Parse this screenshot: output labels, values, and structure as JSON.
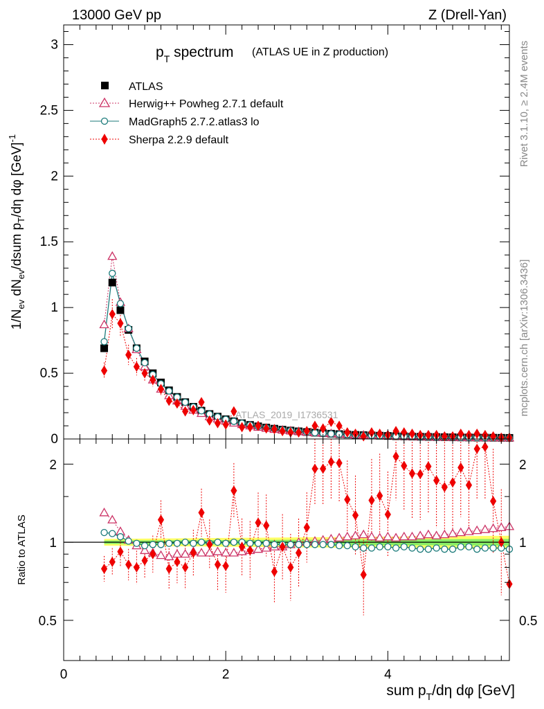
{
  "header": {
    "left": "13000 GeV pp",
    "right": "Z (Drell-Yan)"
  },
  "side_labels": {
    "rivet": "Rivet 3.1.10, ≥ 2.4M events",
    "mcplots": "mcplots.cern.ch [arXiv:1306.3436]"
  },
  "watermark": "ATLAS_2019_I1736531",
  "colors": {
    "atlas": "#000000",
    "herwig": "#cc3366",
    "madgraph": "#1a7a7a",
    "sherpa": "#ee0000",
    "band_outer": "#ffff66",
    "band_inner": "#88ee66"
  },
  "chart_data": [
    {
      "type": "scatter",
      "panel": "main",
      "title": "p_T spectrum",
      "title_main": "p",
      "title_sub": "T",
      "title_word": " spectrum",
      "subtitle": "(ATLAS UE in Z production)",
      "xlabel": "sum p_T/dη dφ [GeV]",
      "ylabel": "1/N_ev dN_ev/dsum p_T/dη dφ [GeV]^-1",
      "xlim": [
        0,
        5.5
      ],
      "ylim": [
        0,
        3.15
      ],
      "y_ticks": [
        0,
        0.5,
        1,
        1.5,
        2,
        2.5,
        3
      ],
      "y_tick_labels": [
        "0",
        "0.5",
        "1",
        "1.5",
        "2",
        "2.5",
        "3"
      ],
      "x": [
        0.5,
        0.6,
        0.7,
        0.8,
        0.9,
        1.0,
        1.1,
        1.2,
        1.3,
        1.4,
        1.5,
        1.6,
        1.7,
        1.8,
        1.9,
        2.0,
        2.1,
        2.2,
        2.3,
        2.4,
        2.5,
        2.6,
        2.7,
        2.8,
        2.9,
        3.0,
        3.1,
        3.2,
        3.3,
        3.4,
        3.5,
        3.6,
        3.7,
        3.8,
        3.9,
        4.0,
        4.1,
        4.2,
        4.3,
        4.4,
        4.5,
        4.6,
        4.7,
        4.8,
        4.9,
        5.0,
        5.1,
        5.2,
        5.3,
        5.4,
        5.5
      ],
      "legend": [
        "ATLAS",
        "Herwig++ Powheg 2.7.1 default",
        "MadGraph5 2.7.2.atlas3 lo",
        "Sherpa 2.2.9 default"
      ],
      "series": [
        {
          "name": "ATLAS",
          "values": [
            0.69,
            1.19,
            0.98,
            0.83,
            0.69,
            0.59,
            0.5,
            0.43,
            0.37,
            0.32,
            0.28,
            0.245,
            0.215,
            0.19,
            0.17,
            0.15,
            0.135,
            0.12,
            0.107,
            0.096,
            0.087,
            0.078,
            0.071,
            0.064,
            0.058,
            0.053,
            0.048,
            0.044,
            0.04,
            0.037,
            0.034,
            0.031,
            0.029,
            0.027,
            0.025,
            0.023,
            0.021,
            0.0195,
            0.018,
            0.0168,
            0.0157,
            0.0147,
            0.0137,
            0.0128,
            0.012,
            0.0113,
            0.0106,
            0.01,
            0.0094,
            0.0088,
            0.0083
          ]
        },
        {
          "name": "Herwig++ Powheg 2.7.1 default",
          "values": [
            0.87,
            1.39,
            1.04,
            0.84,
            0.68,
            0.55,
            0.45,
            0.38,
            0.33,
            0.29,
            0.25,
            0.22,
            0.195,
            0.17,
            0.153,
            0.137,
            0.122,
            0.11,
            0.1,
            0.09,
            0.082,
            0.074,
            0.068,
            0.062,
            0.057,
            0.052,
            0.048,
            0.044,
            0.041,
            0.038,
            0.035,
            0.032,
            0.03,
            0.028,
            0.026,
            0.024,
            0.022,
            0.0205,
            0.019,
            0.0176,
            0.0164,
            0.0153,
            0.0143,
            0.0134,
            0.0126,
            0.0118,
            0.011,
            0.0103,
            0.0097,
            0.0091,
            0.0085
          ]
        },
        {
          "name": "MadGraph5 2.7.2.atlas3 lo",
          "values": [
            0.74,
            1.26,
            1.03,
            0.84,
            0.69,
            0.58,
            0.49,
            0.42,
            0.365,
            0.318,
            0.279,
            0.244,
            0.214,
            0.189,
            0.169,
            0.149,
            0.134,
            0.12,
            0.106,
            0.095,
            0.086,
            0.077,
            0.07,
            0.063,
            0.057,
            0.052,
            0.047,
            0.043,
            0.039,
            0.036,
            0.033,
            0.03,
            0.028,
            0.026,
            0.024,
            0.022,
            0.02,
            0.019,
            0.017,
            0.016,
            0.015,
            0.014,
            0.013,
            0.012,
            0.0115,
            0.011,
            0.01,
            0.0095,
            0.0089,
            0.0083,
            0.0078
          ]
        },
        {
          "name": "Sherpa 2.2.9 default",
          "values": [
            0.52,
            0.95,
            0.88,
            0.64,
            0.55,
            0.5,
            0.45,
            0.38,
            0.29,
            0.27,
            0.21,
            0.22,
            0.28,
            0.14,
            0.12,
            0.11,
            0.21,
            0.09,
            0.09,
            0.1,
            0.08,
            0.075,
            0.06,
            0.05,
            0.05,
            0.06,
            0.1,
            0.08,
            0.13,
            0.1,
            0.05,
            0.04,
            0.02,
            0.05,
            0.04,
            0.03,
            0.06,
            0.05,
            0.04,
            0.03,
            0.03,
            0.03,
            0.02,
            0.02,
            0.04,
            0.03,
            0.04,
            0.03,
            0.02,
            0.01,
            0.01
          ]
        }
      ]
    },
    {
      "type": "scatter",
      "panel": "ratio",
      "xlabel": "sum p_T/dη dφ [GeV]",
      "xlabel_main": "sum p",
      "xlabel_sub": "T",
      "xlabel_rest": "/dη dφ [GeV]",
      "ylabel": "Ratio to ATLAS",
      "xlim": [
        0,
        5.5
      ],
      "ylim": [
        0.35,
        2.5
      ],
      "y_ticks": [
        0.5,
        1,
        2
      ],
      "y_tick_labels": [
        "0.5",
        "1",
        "2"
      ],
      "x_ticks": [
        0,
        2,
        4
      ],
      "x_tick_labels": [
        "0",
        "2",
        "4"
      ],
      "x": [
        0.5,
        0.6,
        0.7,
        0.8,
        0.9,
        1.0,
        1.1,
        1.2,
        1.3,
        1.4,
        1.5,
        1.6,
        1.7,
        1.8,
        1.9,
        2.0,
        2.1,
        2.2,
        2.3,
        2.4,
        2.5,
        2.6,
        2.7,
        2.8,
        2.9,
        3.0,
        3.1,
        3.2,
        3.3,
        3.4,
        3.5,
        3.6,
        3.7,
        3.8,
        3.9,
        4.0,
        4.1,
        4.2,
        4.3,
        4.4,
        4.5,
        4.6,
        4.7,
        4.8,
        4.9,
        5.0,
        5.1,
        5.2,
        5.3,
        5.4,
        5.5
      ],
      "band_half_width": 0.03,
      "series": [
        {
          "name": "Herwig++ Powheg 2.7.1 default",
          "values": [
            1.3,
            1.22,
            1.1,
            1.02,
            0.97,
            0.93,
            0.91,
            0.89,
            0.88,
            0.9,
            0.9,
            0.92,
            0.91,
            0.91,
            0.92,
            0.91,
            0.91,
            0.92,
            0.93,
            0.94,
            0.95,
            0.96,
            0.96,
            0.98,
            1.0,
            1.0,
            1.01,
            1.02,
            1.03,
            1.04,
            1.05,
            1.06,
            1.07,
            1.05,
            1.04,
            1.05,
            1.04,
            1.05,
            1.05,
            1.06,
            1.07,
            1.06,
            1.07,
            1.08,
            1.09,
            1.1,
            1.11,
            1.12,
            1.13,
            1.14,
            1.15
          ]
        },
        {
          "name": "MadGraph5 2.7.2.atlas3 lo",
          "values": [
            1.09,
            1.08,
            1.05,
            1.01,
            0.99,
            0.97,
            0.98,
            0.98,
            0.99,
            0.99,
            1.0,
            0.99,
            1.0,
            0.99,
            1.0,
            0.99,
            1.0,
            1.0,
            0.99,
            0.99,
            0.99,
            0.98,
            0.98,
            0.98,
            0.98,
            0.98,
            0.98,
            0.98,
            0.98,
            0.97,
            0.97,
            0.96,
            0.95,
            0.95,
            0.96,
            0.96,
            0.95,
            0.96,
            0.95,
            0.94,
            0.94,
            0.95,
            0.94,
            0.94,
            0.96,
            0.96,
            0.94,
            0.95,
            0.95,
            0.95,
            0.94
          ]
        },
        {
          "name": "Sherpa 2.2.9 default",
          "values": [
            0.79,
            0.84,
            0.92,
            0.82,
            0.8,
            0.85,
            0.9,
            1.22,
            0.79,
            0.84,
            0.8,
            0.91,
            1.3,
            0.98,
            0.82,
            0.81,
            1.58,
            0.96,
            0.93,
            1.19,
            1.16,
            0.77,
            0.96,
            0.8,
            0.91,
            1.14,
            1.92,
            1.92,
            2.04,
            2.02,
            1.46,
            1.27,
            0.75,
            1.45,
            1.51,
            1.28,
            2.14,
            1.97,
            1.84,
            1.83,
            1.96,
            1.73,
            1.63,
            1.7,
            1.94,
            1.66,
            2.29,
            2.33,
            1.44,
            1.0,
            0.69
          ]
        }
      ]
    }
  ]
}
